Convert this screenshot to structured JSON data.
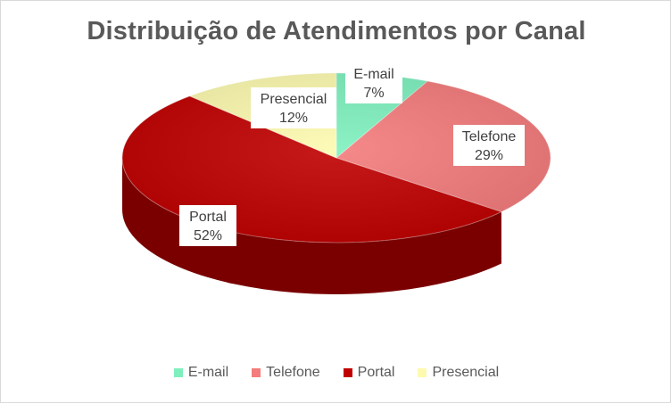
{
  "chart_data": {
    "type": "pie",
    "title": "Distribuição de Atendimentos por Canal",
    "categories": [
      "E-mail",
      "Telefone",
      "Portal",
      "Presencial"
    ],
    "values": [
      7,
      29,
      52,
      12
    ],
    "value_labels": [
      "7%",
      "29%",
      "52%",
      "12%"
    ],
    "colors": [
      "#7ef0be",
      "#f47c7c",
      "#c00000",
      "#fdfab0"
    ],
    "side_colors": [
      "#46c48d",
      "#b34848",
      "#7a0000",
      "#d2cd6a"
    ],
    "legend_position": "bottom",
    "three_d": true
  }
}
